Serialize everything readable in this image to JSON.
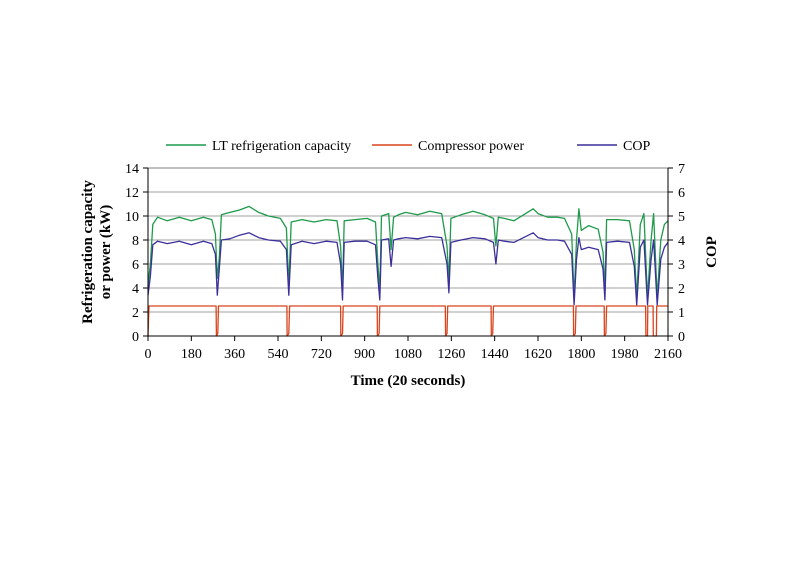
{
  "chart_data": {
    "type": "line",
    "title": "",
    "xlabel": "Time (20 seconds)",
    "ylabel": "Refrigeration capacity or power (kW)",
    "ylabel_lines": [
      "Refrigeration capacity",
      "or power (kW)"
    ],
    "y2label": "COP",
    "xlim": [
      0,
      2160
    ],
    "ylim": [
      0,
      14
    ],
    "y2lim": [
      0,
      7
    ],
    "xticks": [
      0,
      180,
      360,
      540,
      720,
      900,
      1080,
      1260,
      1440,
      1620,
      1800,
      1980,
      2160
    ],
    "yticks": [
      0,
      2,
      4,
      6,
      8,
      10,
      12,
      14
    ],
    "y2ticks": [
      0,
      1,
      2,
      3,
      4,
      5,
      6,
      7
    ],
    "grid": "horizontal",
    "legend_position": "top",
    "series": [
      {
        "name": "LT refrigeration capacity",
        "axis": "left",
        "color": "#1e9a4a",
        "points": [
          [
            0,
            4.2
          ],
          [
            10,
            6
          ],
          [
            20,
            9.3
          ],
          [
            40,
            9.9
          ],
          [
            80,
            9.6
          ],
          [
            130,
            9.9
          ],
          [
            180,
            9.6
          ],
          [
            230,
            9.9
          ],
          [
            265,
            9.7
          ],
          [
            280,
            8.5
          ],
          [
            288,
            4.8
          ],
          [
            296,
            6.5
          ],
          [
            305,
            10.1
          ],
          [
            340,
            10.3
          ],
          [
            380,
            10.5
          ],
          [
            420,
            10.8
          ],
          [
            460,
            10.3
          ],
          [
            500,
            10.0
          ],
          [
            550,
            9.8
          ],
          [
            575,
            9.0
          ],
          [
            585,
            4.2
          ],
          [
            595,
            9.5
          ],
          [
            640,
            9.7
          ],
          [
            690,
            9.5
          ],
          [
            740,
            9.7
          ],
          [
            785,
            9.6
          ],
          [
            800,
            7.5
          ],
          [
            808,
            3.8
          ],
          [
            815,
            9.6
          ],
          [
            860,
            9.7
          ],
          [
            910,
            9.8
          ],
          [
            945,
            9.5
          ],
          [
            955,
            6
          ],
          [
            963,
            3.8
          ],
          [
            970,
            10.0
          ],
          [
            1000,
            10.2
          ],
          [
            1010,
            7.2
          ],
          [
            1020,
            9.9
          ],
          [
            1040,
            10.1
          ],
          [
            1070,
            10.3
          ],
          [
            1120,
            10.1
          ],
          [
            1170,
            10.4
          ],
          [
            1220,
            10.2
          ],
          [
            1242,
            7.5
          ],
          [
            1250,
            4.5
          ],
          [
            1258,
            9.8
          ],
          [
            1300,
            10.1
          ],
          [
            1350,
            10.4
          ],
          [
            1400,
            10.1
          ],
          [
            1435,
            9.8
          ],
          [
            1445,
            7.5
          ],
          [
            1455,
            9.9
          ],
          [
            1480,
            9.8
          ],
          [
            1520,
            9.6
          ],
          [
            1560,
            10.1
          ],
          [
            1600,
            10.6
          ],
          [
            1620,
            10.2
          ],
          [
            1660,
            9.9
          ],
          [
            1700,
            9.9
          ],
          [
            1730,
            9.8
          ],
          [
            1760,
            8.5
          ],
          [
            1770,
            3.2
          ],
          [
            1780,
            8
          ],
          [
            1790,
            10.6
          ],
          [
            1800,
            8.8
          ],
          [
            1830,
            9.2
          ],
          [
            1870,
            8.9
          ],
          [
            1890,
            7
          ],
          [
            1898,
            3.8
          ],
          [
            1905,
            9.7
          ],
          [
            1950,
            9.7
          ],
          [
            2000,
            9.6
          ],
          [
            2020,
            7.2
          ],
          [
            2030,
            3.2
          ],
          [
            2045,
            9.3
          ],
          [
            2060,
            10.2
          ],
          [
            2075,
            3.2
          ],
          [
            2090,
            8
          ],
          [
            2100,
            10.2
          ],
          [
            2115,
            3.2
          ],
          [
            2130,
            8
          ],
          [
            2145,
            9.3
          ],
          [
            2160,
            9.6
          ]
        ]
      },
      {
        "name": "Compressor power",
        "axis": "left",
        "color": "#d9441c",
        "points": [
          [
            0,
            0
          ],
          [
            4,
            2.5
          ],
          [
            283,
            2.5
          ],
          [
            284,
            0
          ],
          [
            290,
            0.2
          ],
          [
            293,
            2.5
          ],
          [
            577,
            2.5
          ],
          [
            578,
            0
          ],
          [
            585,
            0.2
          ],
          [
            588,
            2.5
          ],
          [
            800,
            2.5
          ],
          [
            801,
            0
          ],
          [
            808,
            0.2
          ],
          [
            811,
            2.5
          ],
          [
            952,
            2.5
          ],
          [
            953,
            0
          ],
          [
            960,
            0.2
          ],
          [
            963,
            2.5
          ],
          [
            1235,
            2.5
          ],
          [
            1236,
            0
          ],
          [
            1242,
            0.2
          ],
          [
            1245,
            2.5
          ],
          [
            1425,
            2.5
          ],
          [
            1426,
            0
          ],
          [
            1432,
            0.2
          ],
          [
            1435,
            2.5
          ],
          [
            1767,
            2.5
          ],
          [
            1768,
            0
          ],
          [
            1775,
            0.2
          ],
          [
            1778,
            2.5
          ],
          [
            1895,
            2.5
          ],
          [
            1896,
            0
          ],
          [
            1902,
            0.2
          ],
          [
            1905,
            2.5
          ],
          [
            2067,
            2.5
          ],
          [
            2068,
            0
          ],
          [
            2075,
            0
          ],
          [
            2076,
            2.5
          ],
          [
            2098,
            2.5
          ],
          [
            2099,
            0
          ],
          [
            2112,
            0
          ],
          [
            2113,
            2.5
          ],
          [
            2160,
            2.5
          ]
        ]
      },
      {
        "name": "COP",
        "axis": "right",
        "color": "#3a2f9c",
        "points": [
          [
            0,
            1.7
          ],
          [
            10,
            2.5
          ],
          [
            20,
            3.8
          ],
          [
            40,
            3.95
          ],
          [
            80,
            3.85
          ],
          [
            130,
            3.95
          ],
          [
            180,
            3.8
          ],
          [
            230,
            3.95
          ],
          [
            265,
            3.85
          ],
          [
            280,
            3.4
          ],
          [
            288,
            1.7
          ],
          [
            296,
            2.8
          ],
          [
            305,
            4.0
          ],
          [
            340,
            4.05
          ],
          [
            380,
            4.2
          ],
          [
            420,
            4.3
          ],
          [
            460,
            4.1
          ],
          [
            500,
            4.0
          ],
          [
            550,
            3.95
          ],
          [
            575,
            3.6
          ],
          [
            585,
            1.7
          ],
          [
            595,
            3.8
          ],
          [
            640,
            3.95
          ],
          [
            690,
            3.85
          ],
          [
            740,
            3.95
          ],
          [
            785,
            3.9
          ],
          [
            800,
            3.0
          ],
          [
            808,
            1.5
          ],
          [
            815,
            3.9
          ],
          [
            860,
            3.95
          ],
          [
            910,
            3.95
          ],
          [
            945,
            3.8
          ],
          [
            955,
            2.4
          ],
          [
            963,
            1.5
          ],
          [
            970,
            4.0
          ],
          [
            1000,
            4.05
          ],
          [
            1010,
            2.9
          ],
          [
            1020,
            4.0
          ],
          [
            1040,
            4.05
          ],
          [
            1070,
            4.1
          ],
          [
            1120,
            4.05
          ],
          [
            1170,
            4.15
          ],
          [
            1220,
            4.1
          ],
          [
            1242,
            3.0
          ],
          [
            1250,
            1.8
          ],
          [
            1258,
            3.9
          ],
          [
            1300,
            4.0
          ],
          [
            1350,
            4.1
          ],
          [
            1400,
            4.05
          ],
          [
            1435,
            3.9
          ],
          [
            1445,
            3.0
          ],
          [
            1455,
            4.0
          ],
          [
            1480,
            3.95
          ],
          [
            1520,
            3.9
          ],
          [
            1560,
            4.1
          ],
          [
            1600,
            4.3
          ],
          [
            1620,
            4.1
          ],
          [
            1660,
            4.0
          ],
          [
            1700,
            4.0
          ],
          [
            1730,
            3.95
          ],
          [
            1760,
            3.4
          ],
          [
            1770,
            1.3
          ],
          [
            1780,
            3.2
          ],
          [
            1790,
            4.1
          ],
          [
            1800,
            3.6
          ],
          [
            1830,
            3.7
          ],
          [
            1870,
            3.6
          ],
          [
            1890,
            2.8
          ],
          [
            1898,
            1.5
          ],
          [
            1905,
            3.9
          ],
          [
            1950,
            3.95
          ],
          [
            2000,
            3.9
          ],
          [
            2020,
            2.9
          ],
          [
            2030,
            1.3
          ],
          [
            2045,
            3.7
          ],
          [
            2060,
            4.0
          ],
          [
            2075,
            1.3
          ],
          [
            2090,
            3.2
          ],
          [
            2100,
            4.0
          ],
          [
            2115,
            1.3
          ],
          [
            2130,
            3.2
          ],
          [
            2145,
            3.7
          ],
          [
            2160,
            3.9
          ]
        ]
      }
    ]
  }
}
